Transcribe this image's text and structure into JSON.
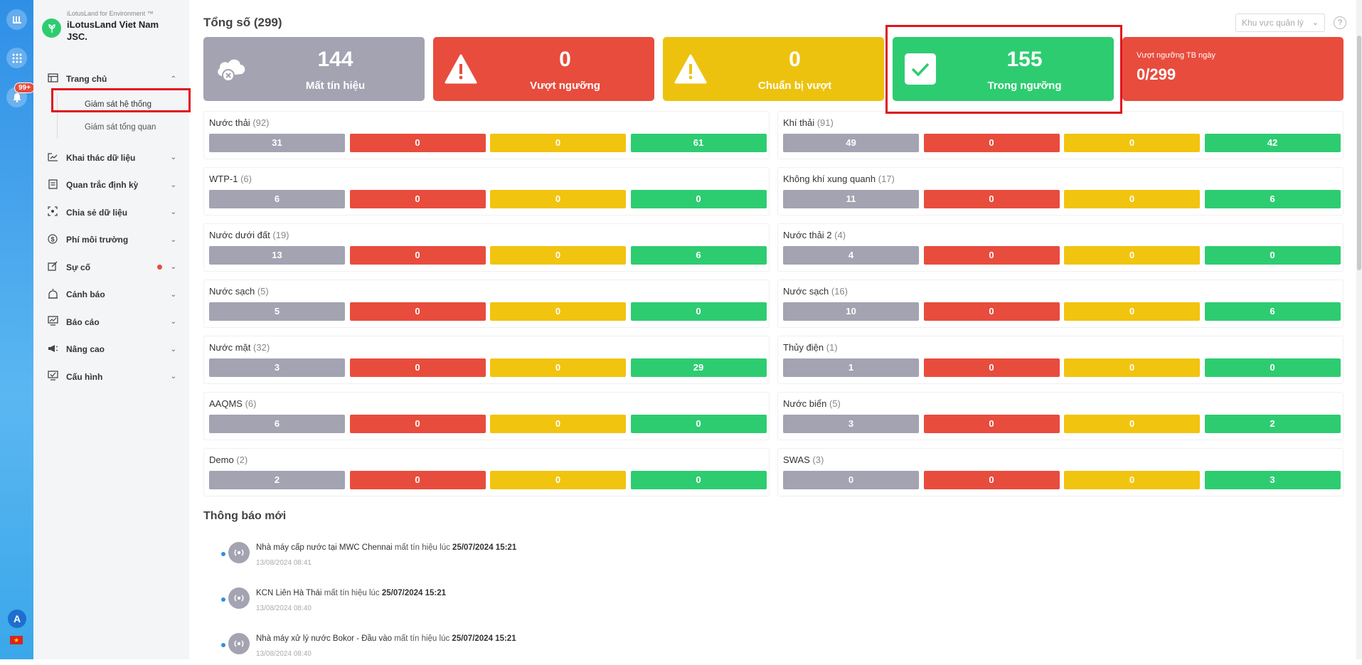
{
  "rail": {
    "badge": "99+",
    "avatar": "A",
    "icons": [
      "app-logo-icon",
      "grid-icon",
      "bell-icon"
    ]
  },
  "brand": {
    "subtitle": "iLotusLand for Environment ™",
    "name": "iLotusLand Viet Nam JSC."
  },
  "sidebar": {
    "items": [
      {
        "label": "Trang chủ",
        "icon": "home-icon"
      },
      {
        "label": "Khai thác dữ liệu",
        "icon": "data-icon"
      },
      {
        "label": "Quan trắc định kỳ",
        "icon": "doc-icon"
      },
      {
        "label": "Chia sẻ dữ liệu",
        "icon": "share-icon"
      },
      {
        "label": "Phí môi trường",
        "icon": "dollar-icon"
      },
      {
        "label": "Sự cố",
        "icon": "incident-icon"
      },
      {
        "label": "Cảnh báo",
        "icon": "alarm-icon"
      },
      {
        "label": "Báo cáo",
        "icon": "report-icon"
      },
      {
        "label": "Nâng cao",
        "icon": "megaphone-icon"
      },
      {
        "label": "Cấu hình",
        "icon": "config-icon"
      }
    ],
    "subitems": [
      "Giám sát hệ thống",
      "Giám sát tổng quan"
    ]
  },
  "header": {
    "title": "Tổng số (299)",
    "region_placeholder": "Khu vực quản lý",
    "help": "?"
  },
  "summary": {
    "lost": {
      "value": "144",
      "label": "Mất tín hiệu"
    },
    "exceed": {
      "value": "0",
      "label": "Vượt ngưỡng"
    },
    "prepare": {
      "value": "0",
      "label": "Chuẩn bị vượt"
    },
    "good": {
      "value": "155",
      "label": "Trong ngưỡng"
    },
    "avg": {
      "label": "Vượt ngưỡng TB ngày",
      "value": "0/299"
    }
  },
  "groups": [
    {
      "name": "Nước thải",
      "count": "(92)",
      "values": [
        "31",
        "0",
        "0",
        "61"
      ]
    },
    {
      "name": "Khí thải",
      "count": "(91)",
      "values": [
        "49",
        "0",
        "0",
        "42"
      ]
    },
    {
      "name": "WTP-1",
      "count": "(6)",
      "values": [
        "6",
        "0",
        "0",
        "0"
      ]
    },
    {
      "name": "Không khí xung quanh",
      "count": "(17)",
      "values": [
        "11",
        "0",
        "0",
        "6"
      ]
    },
    {
      "name": "Nước dưới đất",
      "count": "(19)",
      "values": [
        "13",
        "0",
        "0",
        "6"
      ]
    },
    {
      "name": "Nước thải 2",
      "count": "(4)",
      "values": [
        "4",
        "0",
        "0",
        "0"
      ]
    },
    {
      "name": "Nước sạch",
      "count": "(5)",
      "values": [
        "5",
        "0",
        "0",
        "0"
      ]
    },
    {
      "name": "Nước sạch",
      "count": "(16)",
      "values": [
        "10",
        "0",
        "0",
        "6"
      ]
    },
    {
      "name": "Nước mặt",
      "count": "(32)",
      "values": [
        "3",
        "0",
        "0",
        "29"
      ]
    },
    {
      "name": "Thủy điện",
      "count": "(1)",
      "values": [
        "1",
        "0",
        "0",
        "0"
      ]
    },
    {
      "name": "AAQMS",
      "count": "(6)",
      "values": [
        "6",
        "0",
        "0",
        "0"
      ]
    },
    {
      "name": "Nước biển",
      "count": "(5)",
      "values": [
        "3",
        "0",
        "0",
        "2"
      ]
    },
    {
      "name": "Demo",
      "count": "(2)",
      "values": [
        "2",
        "0",
        "0",
        "0"
      ]
    },
    {
      "name": "SWAS",
      "count": "(3)",
      "values": [
        "0",
        "0",
        "0",
        "3"
      ]
    }
  ],
  "notifications": {
    "title": "Thông báo mới",
    "items": [
      {
        "station": "Nhà máy cấp nước tại MWC Chennai",
        "msg": "mất tín hiệu lúc",
        "at": "25/07/2024 15:21",
        "time": "13/08/2024 08:41"
      },
      {
        "station": "KCN Liên Hà Thái",
        "msg": "mất tín hiệu lúc",
        "at": "25/07/2024 15:21",
        "time": "13/08/2024 08:40"
      },
      {
        "station": "Nhà máy xử lý nước Bokor - Đầu vào",
        "msg": "mất tín hiệu lúc",
        "at": "25/07/2024 15:21",
        "time": "13/08/2024 08:40"
      }
    ]
  },
  "colors": {
    "gray": "#a3a3b2",
    "red": "#e84c3d",
    "yellow": "#f1c40f",
    "green": "#2ecc71",
    "accent": "#2f8fe6",
    "highlight": "#e0141e"
  }
}
